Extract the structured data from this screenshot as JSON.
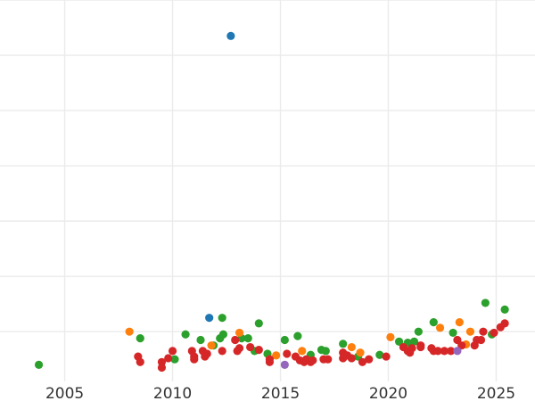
{
  "chart_data": {
    "type": "scatter",
    "title": "",
    "xlabel": "",
    "ylabel": "",
    "x_ticks": [
      2005,
      2010,
      2015,
      2020,
      2025
    ],
    "x_tick_labels": [
      "2005",
      "2010",
      "2015",
      "2020",
      "2025"
    ],
    "xlim": [
      2002.0,
      2026.8
    ],
    "ylim": [
      -0.9,
      6.0
    ],
    "y_grid_values": [
      0,
      1,
      2,
      3,
      4,
      5,
      6
    ],
    "grid": true,
    "legend": "none",
    "series": [
      {
        "color": "#1f77b4",
        "points": [
          {
            "x": 2012.7,
            "y": 5.35
          },
          {
            "x": 2011.7,
            "y": 0.25
          }
        ]
      },
      {
        "color": "#2ca02c",
        "points": [
          {
            "x": 2003.8,
            "y": -0.6
          },
          {
            "x": 2008.5,
            "y": -0.12
          },
          {
            "x": 2010.1,
            "y": -0.5
          },
          {
            "x": 2010.6,
            "y": -0.05
          },
          {
            "x": 2011.3,
            "y": -0.15
          },
          {
            "x": 2011.9,
            "y": -0.25
          },
          {
            "x": 2012.2,
            "y": -0.12
          },
          {
            "x": 2012.35,
            "y": -0.05
          },
          {
            "x": 2012.3,
            "y": 0.25
          },
          {
            "x": 2013.2,
            "y": -0.12
          },
          {
            "x": 2013.5,
            "y": -0.12
          },
          {
            "x": 2013.8,
            "y": -0.35
          },
          {
            "x": 2014.0,
            "y": 0.15
          },
          {
            "x": 2014.4,
            "y": -0.4
          },
          {
            "x": 2015.2,
            "y": -0.15
          },
          {
            "x": 2015.8,
            "y": -0.08
          },
          {
            "x": 2016.4,
            "y": -0.42
          },
          {
            "x": 2016.9,
            "y": -0.33
          },
          {
            "x": 2017.1,
            "y": -0.35
          },
          {
            "x": 2017.9,
            "y": -0.22
          },
          {
            "x": 2018.6,
            "y": -0.45
          },
          {
            "x": 2019.6,
            "y": -0.42
          },
          {
            "x": 2020.5,
            "y": -0.18
          },
          {
            "x": 2020.9,
            "y": -0.2
          },
          {
            "x": 2021.2,
            "y": -0.18
          },
          {
            "x": 2021.4,
            "y": 0.0
          },
          {
            "x": 2022.1,
            "y": 0.17
          },
          {
            "x": 2023.0,
            "y": -0.02
          },
          {
            "x": 2024.5,
            "y": 0.52
          },
          {
            "x": 2024.8,
            "y": -0.05
          },
          {
            "x": 2025.4,
            "y": 0.4
          }
        ]
      },
      {
        "color": "#ff7f0e",
        "points": [
          {
            "x": 2008.0,
            "y": 0.0
          },
          {
            "x": 2011.8,
            "y": -0.25
          },
          {
            "x": 2013.1,
            "y": -0.02
          },
          {
            "x": 2014.8,
            "y": -0.43
          },
          {
            "x": 2016.0,
            "y": -0.35
          },
          {
            "x": 2018.3,
            "y": -0.28
          },
          {
            "x": 2018.7,
            "y": -0.38
          },
          {
            "x": 2020.1,
            "y": -0.1
          },
          {
            "x": 2022.4,
            "y": 0.07
          },
          {
            "x": 2023.3,
            "y": 0.17
          },
          {
            "x": 2023.6,
            "y": -0.23
          },
          {
            "x": 2023.8,
            "y": 0.0
          }
        ]
      },
      {
        "color": "#d62728",
        "points": [
          {
            "x": 2008.4,
            "y": -0.45
          },
          {
            "x": 2008.5,
            "y": -0.55
          },
          {
            "x": 2009.5,
            "y": -0.55
          },
          {
            "x": 2009.5,
            "y": -0.65
          },
          {
            "x": 2009.8,
            "y": -0.48
          },
          {
            "x": 2010.0,
            "y": -0.35
          },
          {
            "x": 2010.9,
            "y": -0.35
          },
          {
            "x": 2011.0,
            "y": -0.45
          },
          {
            "x": 2011.0,
            "y": -0.5
          },
          {
            "x": 2011.4,
            "y": -0.35
          },
          {
            "x": 2011.5,
            "y": -0.45
          },
          {
            "x": 2011.6,
            "y": -0.4
          },
          {
            "x": 2012.3,
            "y": -0.35
          },
          {
            "x": 2012.9,
            "y": -0.15
          },
          {
            "x": 2013.0,
            "y": -0.35
          },
          {
            "x": 2013.1,
            "y": -0.3
          },
          {
            "x": 2013.6,
            "y": -0.28
          },
          {
            "x": 2014.0,
            "y": -0.33
          },
          {
            "x": 2014.5,
            "y": -0.5
          },
          {
            "x": 2014.5,
            "y": -0.55
          },
          {
            "x": 2015.3,
            "y": -0.4
          },
          {
            "x": 2015.7,
            "y": -0.45
          },
          {
            "x": 2015.9,
            "y": -0.52
          },
          {
            "x": 2016.1,
            "y": -0.55
          },
          {
            "x": 2016.2,
            "y": -0.5
          },
          {
            "x": 2016.4,
            "y": -0.55
          },
          {
            "x": 2016.5,
            "y": -0.52
          },
          {
            "x": 2017.0,
            "y": -0.5
          },
          {
            "x": 2017.2,
            "y": -0.5
          },
          {
            "x": 2017.9,
            "y": -0.38
          },
          {
            "x": 2017.9,
            "y": -0.48
          },
          {
            "x": 2018.1,
            "y": -0.43
          },
          {
            "x": 2018.3,
            "y": -0.48
          },
          {
            "x": 2018.8,
            "y": -0.55
          },
          {
            "x": 2019.1,
            "y": -0.5
          },
          {
            "x": 2019.9,
            "y": -0.45
          },
          {
            "x": 2020.7,
            "y": -0.28
          },
          {
            "x": 2020.9,
            "y": -0.35
          },
          {
            "x": 2021.0,
            "y": -0.38
          },
          {
            "x": 2021.1,
            "y": -0.3
          },
          {
            "x": 2021.5,
            "y": -0.25
          },
          {
            "x": 2021.5,
            "y": -0.28
          },
          {
            "x": 2022.0,
            "y": -0.3
          },
          {
            "x": 2022.1,
            "y": -0.35
          },
          {
            "x": 2022.3,
            "y": -0.35
          },
          {
            "x": 2022.6,
            "y": -0.35
          },
          {
            "x": 2022.9,
            "y": -0.35
          },
          {
            "x": 2023.2,
            "y": -0.15
          },
          {
            "x": 2023.4,
            "y": -0.25
          },
          {
            "x": 2024.0,
            "y": -0.25
          },
          {
            "x": 2024.1,
            "y": -0.15
          },
          {
            "x": 2024.3,
            "y": -0.15
          },
          {
            "x": 2024.4,
            "y": 0.0
          },
          {
            "x": 2024.9,
            "y": -0.02
          },
          {
            "x": 2025.2,
            "y": 0.08
          },
          {
            "x": 2025.4,
            "y": 0.15
          }
        ]
      },
      {
        "color": "#9467bd",
        "points": [
          {
            "x": 2015.2,
            "y": -0.6
          },
          {
            "x": 2023.2,
            "y": -0.35
          }
        ]
      }
    ]
  }
}
